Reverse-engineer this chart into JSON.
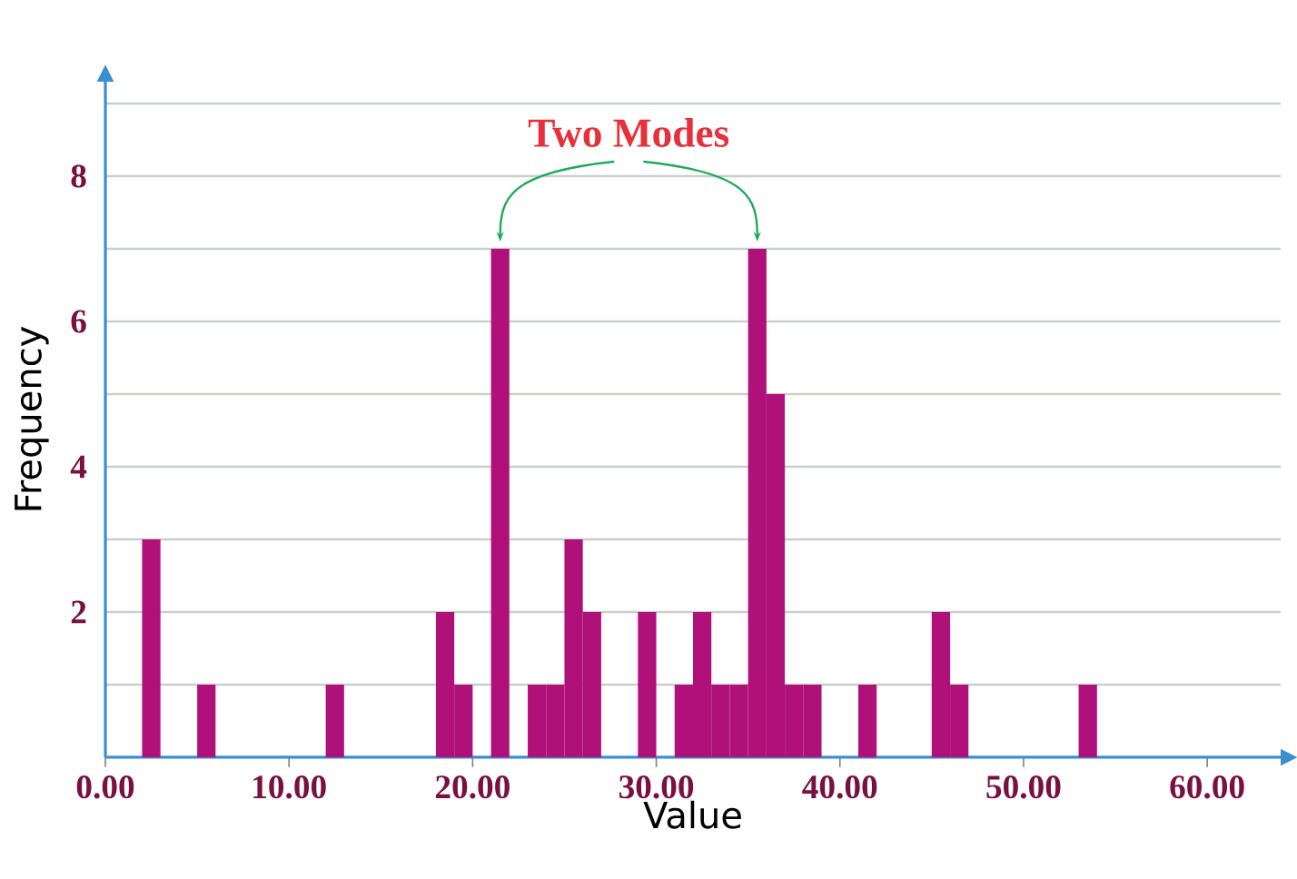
{
  "chart_data": {
    "type": "histogram",
    "xlabel": "Value",
    "ylabel": "Frequency",
    "annotations": [
      "Two Modes"
    ],
    "bins": [
      0,
      1,
      2,
      3,
      4,
      5,
      6,
      7,
      8,
      9,
      10,
      11,
      12,
      13,
      14,
      15,
      16,
      17,
      18,
      19,
      20,
      21,
      22,
      23,
      24,
      25,
      26,
      27,
      28,
      29,
      30,
      31,
      32,
      33,
      34,
      35,
      36,
      37,
      38,
      39,
      40,
      41,
      42,
      43,
      44,
      45,
      46,
      47,
      48,
      49,
      50,
      51,
      52,
      53,
      54
    ],
    "values": [
      0,
      0,
      3,
      0,
      0,
      1,
      0,
      0,
      0,
      0,
      0,
      0,
      1,
      0,
      0,
      0,
      0,
      0,
      2,
      1,
      0,
      7,
      0,
      1,
      1,
      3,
      2,
      0,
      0,
      2,
      0,
      1,
      2,
      1,
      1,
      7,
      5,
      1,
      1,
      0,
      0,
      1,
      0,
      0,
      0,
      2,
      1,
      0,
      0,
      0,
      0,
      0,
      0,
      1
    ],
    "color": "#b0107a",
    "xlim": [
      0,
      64
    ],
    "ylim": [
      0,
      9.3
    ],
    "xticks": [
      {
        "value": 0,
        "label": "0.00"
      },
      {
        "value": 10,
        "label": "10.00"
      },
      {
        "value": 20,
        "label": "20.00"
      },
      {
        "value": 30,
        "label": "30.00"
      },
      {
        "value": 40,
        "label": "40.00"
      },
      {
        "value": 50,
        "label": "50.00"
      },
      {
        "value": 60,
        "label": "60.00"
      }
    ],
    "yticks": [
      {
        "value": 1,
        "label": null
      },
      2,
      {
        "value": 3,
        "label": null
      },
      4,
      {
        "value": 5,
        "label": null
      },
      6,
      {
        "value": 7,
        "label": null
      },
      8,
      {
        "value": 9,
        "label": null
      }
    ],
    "grid": "y"
  }
}
